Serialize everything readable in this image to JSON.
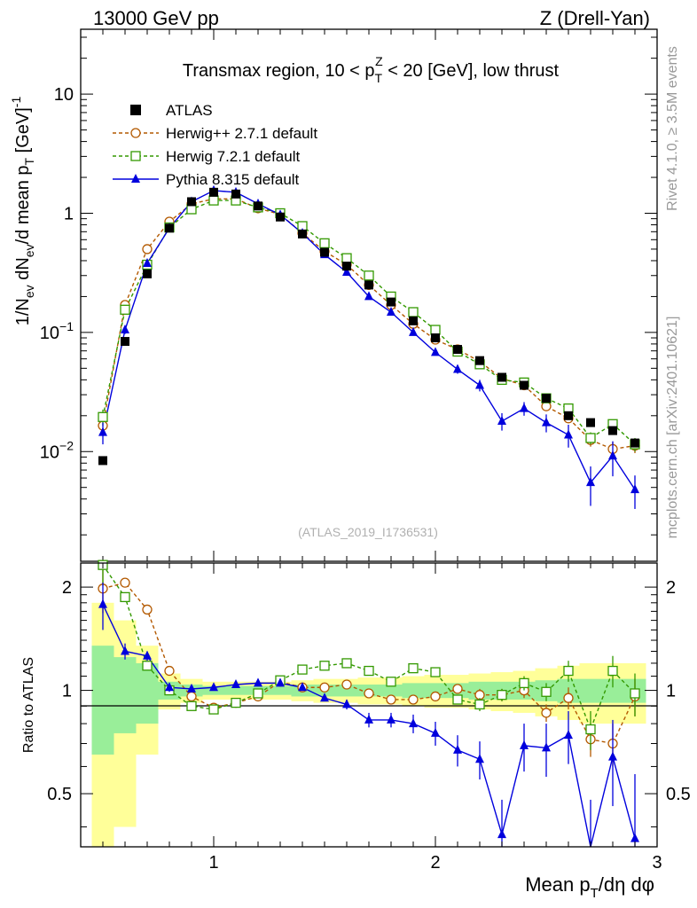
{
  "header": {
    "left": "13000 GeV pp",
    "right": "Z (Drell-Yan)"
  },
  "side_labels": {
    "rivet": "Rivet 4.1.0, ≥ 3.5M events",
    "mcplots": "mcplots.cern.ch [arXiv:2401.10621]"
  },
  "chart_data": {
    "type": "line",
    "title": "Transmax region, 10 < p_T^Z < 20 [GeV], low thrust",
    "title_parts": {
      "pre": "Transmax region, 10 < p",
      "sub": "T",
      "sup": "Z",
      "post": " < 20 [GeV], low thrust"
    },
    "watermark": "(ATLAS_2019_I1736531)",
    "xlabel": "Mean p_T/dη dφ",
    "xlabel_parts": {
      "pre": "Mean p",
      "sub": "T",
      "post": "/dη dφ"
    },
    "ylabel": "1/N_ev dN_ev/d mean p_T [GeV]^-1",
    "ylabel_parts": {
      "a": "1/N",
      "a_sub": "ev",
      "b": " dN",
      "b_sub": "ev",
      "c": "/d mean p",
      "c_sub": "T",
      "d": " [GeV]",
      "d_sup": "-1"
    },
    "ratio_ylabel": "Ratio to ATLAS",
    "xlim": [
      0.4,
      3.0
    ],
    "ylim": [
      0.0012,
      35
    ],
    "yscale": "log",
    "ratio_ylim": [
      0.35,
      2.35
    ],
    "x_ticks": [
      1,
      2,
      3
    ],
    "x_tick_labels": [
      "1",
      "2",
      "3"
    ],
    "y_ticks": [
      0.01,
      0.1,
      1,
      10
    ],
    "y_tick_labels": [
      {
        "base": "10",
        "exp": "−2"
      },
      {
        "base": "10",
        "exp": "−1"
      },
      {
        "base": "1",
        "exp": ""
      },
      {
        "base": "10",
        "exp": ""
      }
    ],
    "ratio_ticks": [
      0.5,
      1,
      2
    ],
    "ratio_tick_labels": [
      "0.5",
      "1",
      "2"
    ],
    "x": [
      0.5,
      0.6,
      0.7,
      0.8,
      0.9,
      1.0,
      1.1,
      1.2,
      1.3,
      1.4,
      1.5,
      1.6,
      1.7,
      1.8,
      1.9,
      2.0,
      2.1,
      2.2,
      2.3,
      2.4,
      2.5,
      2.6,
      2.7,
      2.8,
      2.9
    ],
    "data": {
      "name": "ATLAS",
      "color": "#000000",
      "values": [
        0.0084,
        0.084,
        0.31,
        0.75,
        1.25,
        1.5,
        1.45,
        1.15,
        0.93,
        0.67,
        0.47,
        0.36,
        0.25,
        0.18,
        0.125,
        0.09,
        0.072,
        0.058,
        0.042,
        0.036,
        0.028,
        0.02,
        0.0175,
        0.015,
        0.0118
      ],
      "ratio_band_stat": [
        0.35,
        0.25,
        0.2,
        0.06,
        0.04,
        0.03,
        0.03,
        0.03,
        0.03,
        0.04,
        0.04,
        0.04,
        0.04,
        0.04,
        0.05,
        0.05,
        0.05,
        0.06,
        0.06,
        0.06,
        0.07,
        0.08,
        0.08,
        0.08,
        0.08
      ],
      "ratio_band_total": [
        0.8,
        0.6,
        0.35,
        0.12,
        0.08,
        0.06,
        0.06,
        0.06,
        0.06,
        0.07,
        0.08,
        0.08,
        0.09,
        0.09,
        0.1,
        0.11,
        0.11,
        0.12,
        0.13,
        0.14,
        0.16,
        0.18,
        0.2,
        0.2,
        0.2
      ]
    },
    "series": [
      {
        "name": "Herwig++ 2.7.1 default",
        "color": "#b35900",
        "marker": "circle-open",
        "dash": "4,3",
        "values": [
          0.0165,
          0.17,
          0.5,
          0.85,
          1.2,
          1.32,
          1.32,
          1.1,
          0.98,
          0.68,
          0.48,
          0.37,
          0.25,
          0.17,
          0.118,
          0.087,
          0.072,
          0.057,
          0.041,
          0.036,
          0.024,
          0.019,
          0.0125,
          0.0105,
          0.0112
        ],
        "err": [
          0.003,
          0.01,
          0.02,
          0.02,
          0.03,
          0.03,
          0.03,
          0.03,
          0.02,
          0.02,
          0.01,
          0.01,
          0.008,
          0.006,
          0.004,
          0.003,
          0.003,
          0.002,
          0.002,
          0.002,
          0.0015,
          0.0015,
          0.0015,
          0.0015,
          0.0015
        ],
        "ratio": [
          1.98,
          2.06,
          1.72,
          1.14,
          0.96,
          0.89,
          0.92,
          0.96,
          1.06,
          1.02,
          1.02,
          1.04,
          0.98,
          0.94,
          0.94,
          0.96,
          1.01,
          0.97,
          0.97,
          1.0,
          0.86,
          0.95,
          0.72,
          0.7,
          0.96
        ],
        "ratio_err": [
          0.3,
          0.04,
          0.03,
          0.02,
          0.02,
          0.02,
          0.02,
          0.02,
          0.02,
          0.02,
          0.02,
          0.02,
          0.02,
          0.02,
          0.02,
          0.03,
          0.03,
          0.04,
          0.04,
          0.05,
          0.05,
          0.07,
          0.08,
          0.1,
          0.12
        ]
      },
      {
        "name": "Herwig 7.2.1 default",
        "color": "#339900",
        "marker": "square-open",
        "dash": "4,3",
        "values": [
          0.0195,
          0.155,
          0.37,
          0.76,
          1.08,
          1.28,
          1.28,
          1.12,
          1.0,
          0.78,
          0.56,
          0.42,
          0.3,
          0.2,
          0.148,
          0.105,
          0.069,
          0.054,
          0.04,
          0.038,
          0.028,
          0.023,
          0.013,
          0.017,
          0.0115
        ],
        "err": [
          0.003,
          0.01,
          0.02,
          0.02,
          0.03,
          0.03,
          0.03,
          0.03,
          0.02,
          0.02,
          0.01,
          0.01,
          0.008,
          0.006,
          0.004,
          0.003,
          0.003,
          0.002,
          0.002,
          0.002,
          0.0015,
          0.0015,
          0.0015,
          0.0015,
          0.0015
        ],
        "ratio": [
          2.32,
          1.87,
          1.18,
          1.0,
          0.9,
          0.88,
          0.92,
          0.98,
          1.07,
          1.15,
          1.18,
          1.2,
          1.14,
          1.06,
          1.16,
          1.13,
          0.94,
          0.91,
          0.97,
          1.05,
          0.99,
          1.14,
          0.77,
          1.14,
          0.98
        ],
        "ratio_err": [
          0.3,
          0.04,
          0.03,
          0.02,
          0.02,
          0.02,
          0.02,
          0.02,
          0.02,
          0.02,
          0.02,
          0.02,
          0.02,
          0.02,
          0.03,
          0.03,
          0.03,
          0.04,
          0.04,
          0.05,
          0.06,
          0.08,
          0.1,
          0.12,
          0.14
        ]
      },
      {
        "name": "Pythia 8.315 default",
        "color": "#0000dd",
        "marker": "triangle-filled",
        "dash": "",
        "values": [
          0.0145,
          0.105,
          0.38,
          0.75,
          1.25,
          1.55,
          1.5,
          1.2,
          0.97,
          0.68,
          0.45,
          0.32,
          0.2,
          0.148,
          0.1,
          0.068,
          0.049,
          0.036,
          0.018,
          0.023,
          0.0175,
          0.0138,
          0.0055,
          0.0092,
          0.0048
        ],
        "err": [
          0.003,
          0.008,
          0.02,
          0.02,
          0.03,
          0.03,
          0.03,
          0.03,
          0.02,
          0.02,
          0.01,
          0.01,
          0.008,
          0.006,
          0.005,
          0.004,
          0.004,
          0.004,
          0.003,
          0.003,
          0.003,
          0.003,
          0.002,
          0.003,
          0.0015
        ],
        "ratio": [
          1.78,
          1.3,
          1.26,
          1.02,
          1.01,
          1.02,
          1.04,
          1.05,
          1.05,
          1.02,
          0.95,
          0.91,
          0.82,
          0.82,
          0.8,
          0.75,
          0.67,
          0.63,
          0.38,
          0.69,
          0.68,
          0.74,
          0.33,
          0.64,
          0.37
        ],
        "ratio_err": [
          0.28,
          0.07,
          0.04,
          0.03,
          0.02,
          0.02,
          0.02,
          0.02,
          0.02,
          0.02,
          0.02,
          0.03,
          0.04,
          0.04,
          0.05,
          0.06,
          0.07,
          0.08,
          0.1,
          0.11,
          0.12,
          0.13,
          0.15,
          0.18,
          0.2
        ]
      }
    ]
  }
}
